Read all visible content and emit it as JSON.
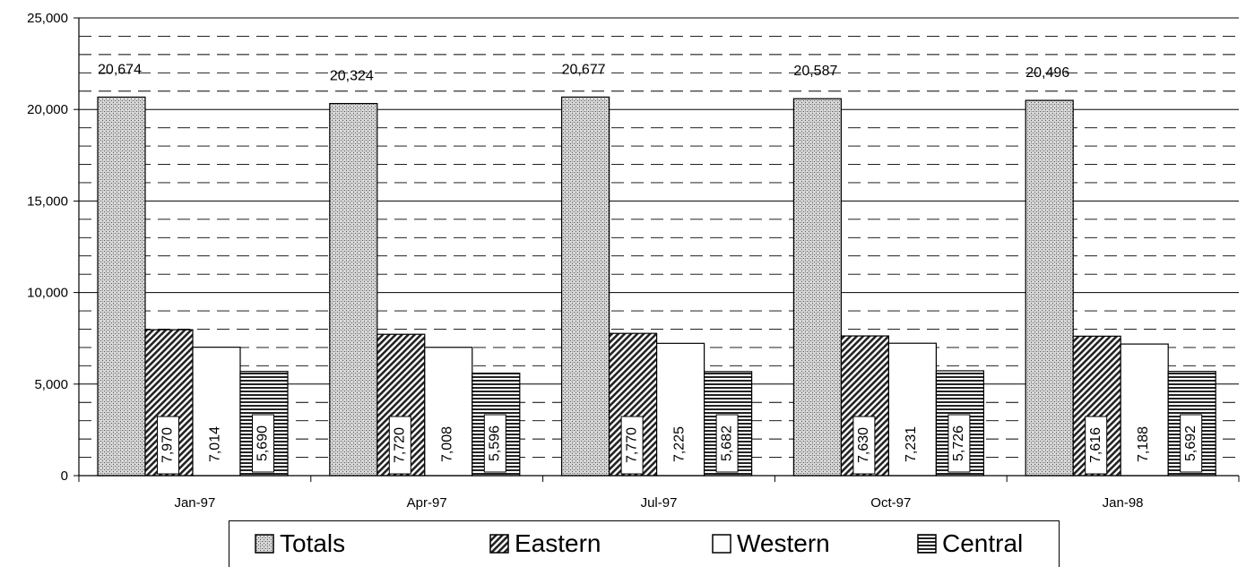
{
  "chart_data": {
    "type": "bar",
    "title": "",
    "xlabel": "",
    "ylabel": "",
    "categories": [
      "Jan-97",
      "Apr-97",
      "Jul-97",
      "Oct-97",
      "Jan-98"
    ],
    "series": [
      {
        "name": "Totals",
        "values": [
          20674,
          20324,
          20677,
          20587,
          20496
        ],
        "labels": [
          "20,674",
          "20,324",
          "20,677",
          "20,587",
          "20,496"
        ]
      },
      {
        "name": "Eastern",
        "values": [
          7970,
          7720,
          7770,
          7630,
          7616
        ],
        "labels": [
          "7,970",
          "7,720",
          "7,770",
          "7,630",
          "7,616"
        ]
      },
      {
        "name": "Western",
        "values": [
          7014,
          7008,
          7225,
          7231,
          7188
        ],
        "labels": [
          "7,014",
          "7,008",
          "7,225",
          "7,231",
          "7,188"
        ]
      },
      {
        "name": "Central",
        "values": [
          5690,
          5596,
          5682,
          5726,
          5692
        ],
        "labels": [
          "5,690",
          "5,596",
          "5,682",
          "5,726",
          "5,692"
        ]
      }
    ],
    "ylim": [
      0,
      25000
    ],
    "yticks": [
      0,
      5000,
      10000,
      15000,
      20000,
      25000
    ],
    "ytick_labels": [
      "0",
      "5,000",
      "10,000",
      "15,000",
      "20,000",
      "25,000"
    ],
    "grid": {
      "major": true,
      "minor_dashed": true
    },
    "legend_position": "bottom"
  }
}
